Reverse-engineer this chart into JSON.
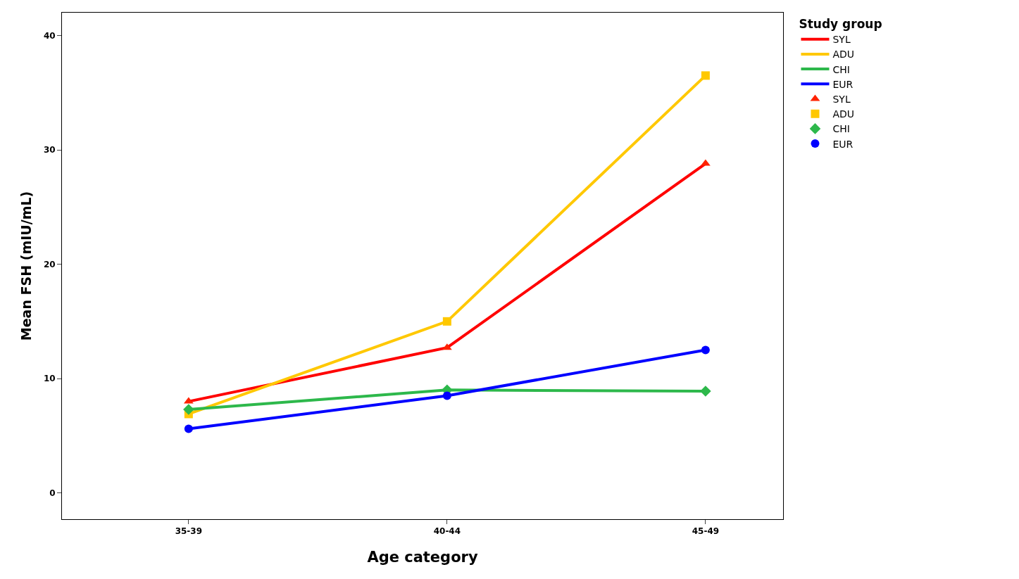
{
  "chart_data": {
    "type": "line",
    "xlabel": "Age category",
    "ylabel": "Mean FSH (mIU/mL)",
    "legend_title": "Study group",
    "legend": "top right",
    "categories": [
      "35-39",
      "40-44",
      "45-49"
    ],
    "ylim": [
      -2.3,
      42
    ],
    "yticks": [
      0,
      10,
      20,
      30,
      40
    ],
    "series": [
      {
        "name": "SYL",
        "color": "#ff0000",
        "marker": "none",
        "values": [
          8.0,
          12.7,
          28.8
        ]
      },
      {
        "name": "ADU",
        "color": "#ffc800",
        "marker": "none",
        "values": [
          6.9,
          15.0,
          36.5
        ]
      },
      {
        "name": "CHI",
        "color": "#2db84b",
        "marker": "none",
        "values": [
          7.3,
          9.0,
          8.9
        ]
      },
      {
        "name": "EUR",
        "color": "#0000ff",
        "marker": "none",
        "values": [
          5.6,
          8.5,
          12.5
        ]
      },
      {
        "name": "SYL",
        "color": "#ff2200",
        "type": "scatter",
        "marker": "triangle",
        "values": [
          8.0,
          12.7,
          28.8
        ]
      },
      {
        "name": "ADU",
        "color": "#ffc800",
        "type": "scatter",
        "marker": "square",
        "values": [
          6.9,
          15.0,
          36.5
        ]
      },
      {
        "name": "CHI",
        "color": "#2db84b",
        "type": "scatter",
        "marker": "diamond",
        "values": [
          7.3,
          9.0,
          8.9
        ]
      },
      {
        "name": "EUR",
        "color": "#0000ff",
        "type": "scatter",
        "marker": "circle",
        "values": [
          5.6,
          8.5,
          12.5
        ]
      }
    ]
  }
}
